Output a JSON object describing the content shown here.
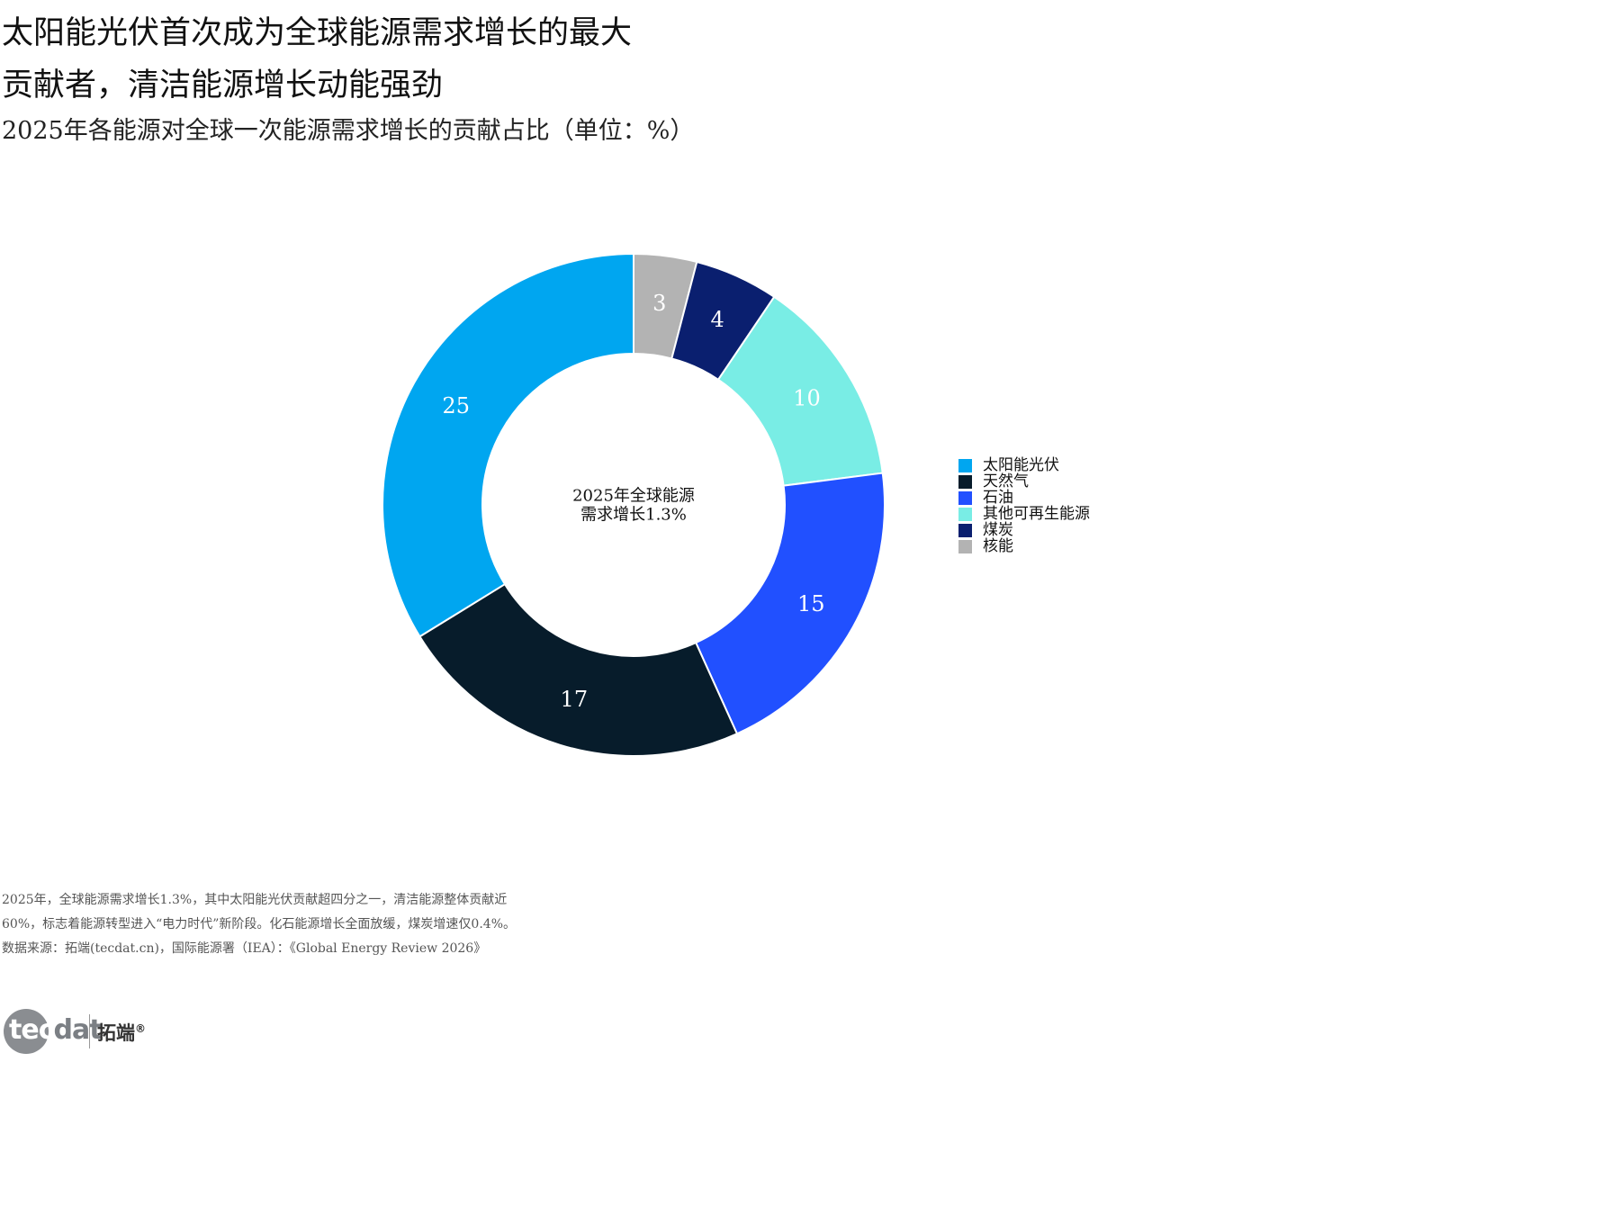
{
  "title_lines": [
    "太阳能光伏首次成为全球能源需求增长的最大",
    "贡献者，清洁能源增长动能强劲"
  ],
  "subtitle": "2025年各能源对全球一次能源需求增长的贡献占比（单位：%）",
  "chart_data": {
    "type": "pie",
    "donut": true,
    "title": "太阳能光伏首次成为全球能源需求增长的最大贡献者，清洁能源增长动能强劲",
    "subtitle": "2025年各能源对全球一次能源需求增长的贡献占比（单位：%）",
    "center_label": [
      "2025年全球能源",
      "需求增长1.3%"
    ],
    "slices": [
      {
        "label": "核能",
        "value": 3,
        "color": "#b3b3b3"
      },
      {
        "label": "煤炭",
        "value": 4,
        "color": "#0a1f6f"
      },
      {
        "label": "其他可再生能源",
        "value": 10,
        "color": "#79ede5"
      },
      {
        "label": "石油",
        "value": 15,
        "color": "#2150ff"
      },
      {
        "label": "天然气",
        "value": 17,
        "color": "#071c2b"
      },
      {
        "label": "太阳能光伏",
        "value": 25,
        "color": "#00a6f0"
      }
    ],
    "legend": [
      "太阳能光伏",
      "天然气",
      "石油",
      "其他可再生能源",
      "煤炭",
      "核能"
    ],
    "legend_position": "right",
    "label_color": "#ffffff"
  },
  "notes": [
    "2025年，全球能源需求增长1.3%，其中太阳能光伏贡献超四分之一，清洁能源整体贡献近",
    "60%，标志着能源转型进入“电力时代”新阶段。化石能源增长全面放缓，煤炭增速仅0.4%。",
    "数据来源：拓端(tecdat.cn)，国际能源署（IEA）：《Global Energy Review 2026》"
  ],
  "logo": {
    "tec": "tec",
    "dat": "dat",
    "cn": "拓端",
    "mark": "®"
  }
}
